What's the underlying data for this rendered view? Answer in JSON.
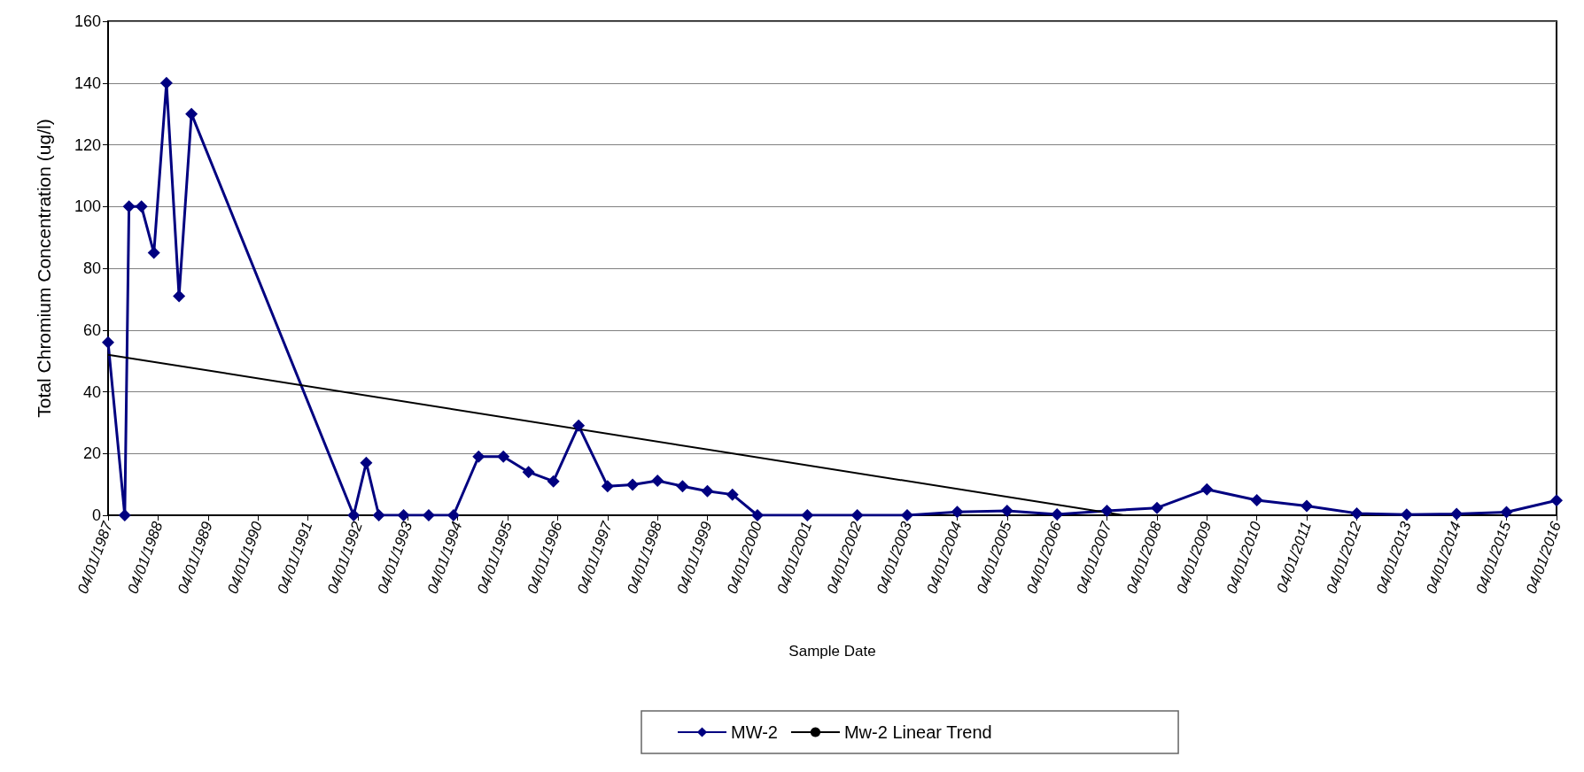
{
  "chart_data": {
    "type": "line",
    "xlabel": "Sample Date",
    "ylabel": "Total Chromium Concentration (ug/l)",
    "xlim": [
      "1987-04-01",
      "2016-04-01"
    ],
    "xticks": [
      {
        "value": "1987-04-01",
        "label": "04/01/1987"
      },
      {
        "value": "1988-04-01",
        "label": "04/01/1988"
      },
      {
        "value": "1989-04-01",
        "label": "04/01/1989"
      },
      {
        "value": "1990-04-01",
        "label": "04/01/1990"
      },
      {
        "value": "1991-04-01",
        "label": "04/01/1991"
      },
      {
        "value": "1992-04-01",
        "label": "04/01/1992"
      },
      {
        "value": "1993-04-01",
        "label": "04/01/1993"
      },
      {
        "value": "1994-04-01",
        "label": "04/01/1994"
      },
      {
        "value": "1995-04-01",
        "label": "04/01/1995"
      },
      {
        "value": "1996-04-01",
        "label": "04/01/1996"
      },
      {
        "value": "1997-04-01",
        "label": "04/01/1997"
      },
      {
        "value": "1998-04-01",
        "label": "04/01/1998"
      },
      {
        "value": "1999-04-01",
        "label": "04/01/1999"
      },
      {
        "value": "2000-04-01",
        "label": "04/01/2000"
      },
      {
        "value": "2001-04-01",
        "label": "04/01/2001"
      },
      {
        "value": "2002-04-01",
        "label": "04/01/2002"
      },
      {
        "value": "2003-04-01",
        "label": "04/01/2003"
      },
      {
        "value": "2004-04-01",
        "label": "04/01/2004"
      },
      {
        "value": "2005-04-01",
        "label": "04/01/2005"
      },
      {
        "value": "2006-04-01",
        "label": "04/01/2006"
      },
      {
        "value": "2007-04-01",
        "label": "04/01/2007"
      },
      {
        "value": "2008-04-01",
        "label": "04/01/2008"
      },
      {
        "value": "2009-04-01",
        "label": "04/01/2009"
      },
      {
        "value": "2010-04-01",
        "label": "04/01/2010"
      },
      {
        "value": "2011-04-01",
        "label": "04/01/2011"
      },
      {
        "value": "2012-04-01",
        "label": "04/01/2012"
      },
      {
        "value": "2013-04-01",
        "label": "04/01/2013"
      },
      {
        "value": "2014-04-01",
        "label": "04/01/2014"
      },
      {
        "value": "2015-04-01",
        "label": "04/01/2015"
      },
      {
        "value": "2016-04-01",
        "label": "04/01/2016"
      }
    ],
    "ylim": [
      0,
      160
    ],
    "yticks": [
      0,
      20,
      40,
      60,
      80,
      100,
      120,
      140,
      160
    ],
    "grid": "y",
    "legend": "bottom",
    "series": [
      {
        "name": "MW-2",
        "color": "#000080",
        "marker": "diamond",
        "x": [
          "1987-04",
          "1987-08",
          "1987-09",
          "1987-12",
          "1988-03",
          "1988-06",
          "1988-09",
          "1988-12",
          "1992-03",
          "1992-06",
          "1992-09",
          "1993-03",
          "1993-09",
          "1994-03",
          "1994-09",
          "1995-03",
          "1995-09",
          "1996-03",
          "1996-09",
          "1997-04",
          "1997-10",
          "1998-04",
          "1998-10",
          "1999-04",
          "1999-10",
          "2000-04",
          "2001-04",
          "2002-04",
          "2003-04",
          "2004-04",
          "2005-04",
          "2006-04",
          "2007-04",
          "2008-04",
          "2009-04",
          "2010-04",
          "2011-04",
          "2012-04",
          "2013-04",
          "2014-04",
          "2015-04",
          "2016-04"
        ],
        "values": [
          56,
          0,
          100,
          100,
          85,
          140,
          71,
          130,
          0,
          17,
          0,
          0,
          0,
          0,
          19,
          19,
          14,
          11,
          29,
          9.4,
          9.9,
          11.2,
          9.4,
          7.8,
          6.7,
          0,
          0,
          0,
          0,
          1.1,
          1.4,
          0.3,
          1.4,
          2.4,
          8.4,
          4.9,
          3.0,
          0.6,
          0.2,
          0.4,
          1.0,
          4.8
        ]
      },
      {
        "name": "Mw-2 Linear Trend",
        "color": "#000000",
        "marker": "none",
        "x": [
          "1987-04-01",
          "2007-08-01"
        ],
        "values": [
          52,
          0
        ]
      }
    ]
  }
}
